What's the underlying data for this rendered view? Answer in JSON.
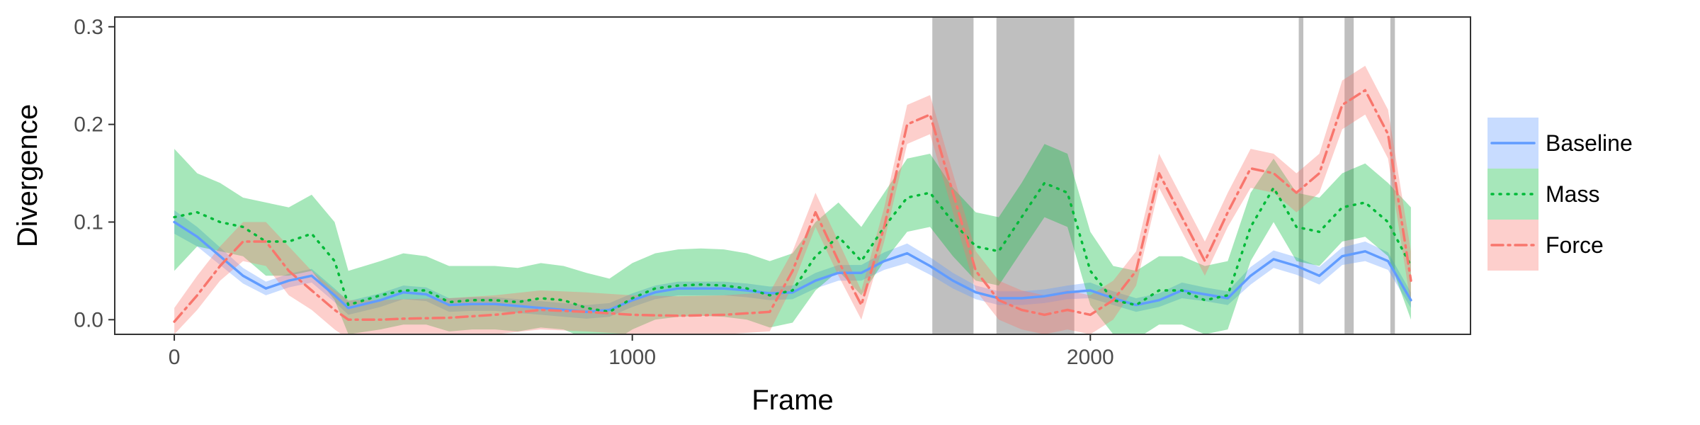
{
  "chart_data": {
    "type": "line",
    "xlabel": "Frame",
    "ylabel": "Divergence",
    "xlim": [
      -130,
      2830
    ],
    "ylim": [
      -0.015,
      0.31
    ],
    "x_ticks": [
      0,
      1000,
      2000
    ],
    "x_tick_labels": [
      "0",
      "1000",
      "2000"
    ],
    "y_ticks": [
      0.0,
      0.1,
      0.2,
      0.3
    ],
    "y_tick_labels": [
      "0.0",
      "0.1",
      "0.2",
      "0.3"
    ],
    "grid": false,
    "legend_position": "right",
    "shaded_regions": [
      {
        "start": 1655,
        "end": 1745
      },
      {
        "start": 1795,
        "end": 1965
      },
      {
        "start": 2455,
        "end": 2465
      },
      {
        "start": 2555,
        "end": 2575
      },
      {
        "start": 2655,
        "end": 2665
      }
    ],
    "shade_color": "#bfbfbf",
    "series": [
      {
        "name": "Baseline",
        "color": "#619CFF",
        "line_style": "solid",
        "x": [
          0,
          50,
          100,
          150,
          200,
          250,
          300,
          350,
          380,
          450,
          500,
          550,
          600,
          650,
          700,
          750,
          800,
          850,
          900,
          950,
          1000,
          1050,
          1100,
          1150,
          1200,
          1250,
          1300,
          1350,
          1400,
          1450,
          1500,
          1550,
          1600,
          1650,
          1700,
          1750,
          1800,
          1850,
          1900,
          1950,
          2000,
          2050,
          2100,
          2150,
          2200,
          2250,
          2300,
          2350,
          2400,
          2450,
          2500,
          2550,
          2600,
          2650,
          2700
        ],
        "y": [
          0.1,
          0.085,
          0.065,
          0.045,
          0.032,
          0.04,
          0.045,
          0.025,
          0.012,
          0.02,
          0.028,
          0.026,
          0.015,
          0.016,
          0.016,
          0.014,
          0.012,
          0.01,
          0.008,
          0.01,
          0.02,
          0.028,
          0.032,
          0.032,
          0.032,
          0.03,
          0.027,
          0.028,
          0.04,
          0.048,
          0.048,
          0.06,
          0.068,
          0.055,
          0.04,
          0.028,
          0.022,
          0.022,
          0.024,
          0.028,
          0.03,
          0.022,
          0.015,
          0.02,
          0.03,
          0.026,
          0.022,
          0.045,
          0.062,
          0.055,
          0.045,
          0.065,
          0.07,
          0.06,
          0.02
        ],
        "lower": [
          0.088,
          0.075,
          0.056,
          0.037,
          0.025,
          0.033,
          0.038,
          0.018,
          0.005,
          0.013,
          0.021,
          0.019,
          0.008,
          0.009,
          0.009,
          0.007,
          0.005,
          0.003,
          0.001,
          0.003,
          0.013,
          0.021,
          0.025,
          0.025,
          0.025,
          0.023,
          0.02,
          0.021,
          0.032,
          0.04,
          0.04,
          0.051,
          0.058,
          0.046,
          0.032,
          0.021,
          0.015,
          0.015,
          0.017,
          0.021,
          0.022,
          0.015,
          0.008,
          0.013,
          0.022,
          0.019,
          0.015,
          0.036,
          0.053,
          0.046,
          0.036,
          0.056,
          0.06,
          0.051,
          0.012
        ],
        "upper": [
          0.112,
          0.095,
          0.074,
          0.053,
          0.039,
          0.047,
          0.052,
          0.032,
          0.019,
          0.027,
          0.035,
          0.033,
          0.022,
          0.023,
          0.023,
          0.021,
          0.019,
          0.017,
          0.015,
          0.017,
          0.027,
          0.035,
          0.039,
          0.039,
          0.039,
          0.037,
          0.034,
          0.035,
          0.048,
          0.056,
          0.056,
          0.069,
          0.078,
          0.064,
          0.048,
          0.035,
          0.029,
          0.029,
          0.031,
          0.035,
          0.038,
          0.029,
          0.022,
          0.027,
          0.038,
          0.033,
          0.029,
          0.054,
          0.071,
          0.064,
          0.054,
          0.074,
          0.08,
          0.069,
          0.028
        ]
      },
      {
        "name": "Mass",
        "color": "#00BA38",
        "line_style": "dotted",
        "x": [
          0,
          50,
          100,
          150,
          200,
          250,
          300,
          350,
          380,
          450,
          500,
          550,
          600,
          650,
          700,
          750,
          800,
          850,
          900,
          950,
          1000,
          1050,
          1100,
          1150,
          1200,
          1250,
          1300,
          1350,
          1400,
          1450,
          1500,
          1550,
          1600,
          1650,
          1700,
          1750,
          1800,
          1850,
          1900,
          1950,
          2000,
          2050,
          2100,
          2150,
          2200,
          2250,
          2300,
          2350,
          2400,
          2450,
          2500,
          2550,
          2600,
          2650,
          2700
        ],
        "y": [
          0.105,
          0.11,
          0.1,
          0.095,
          0.08,
          0.08,
          0.088,
          0.06,
          0.015,
          0.025,
          0.03,
          0.03,
          0.018,
          0.02,
          0.02,
          0.018,
          0.022,
          0.02,
          0.012,
          0.008,
          0.022,
          0.032,
          0.035,
          0.036,
          0.035,
          0.032,
          0.025,
          0.03,
          0.065,
          0.085,
          0.06,
          0.095,
          0.125,
          0.13,
          0.1,
          0.075,
          0.07,
          0.105,
          0.14,
          0.13,
          0.05,
          0.02,
          0.015,
          0.03,
          0.03,
          0.02,
          0.025,
          0.095,
          0.135,
          0.095,
          0.09,
          0.115,
          0.12,
          0.1,
          0.055
        ],
        "lower": [
          0.05,
          0.075,
          0.07,
          0.065,
          0.045,
          0.045,
          0.05,
          0.02,
          -0.015,
          -0.01,
          -0.005,
          -0.005,
          -0.012,
          -0.01,
          -0.01,
          -0.012,
          -0.008,
          -0.01,
          -0.02,
          -0.025,
          -0.01,
          0.0,
          0.003,
          0.004,
          0.003,
          0.0,
          -0.008,
          -0.003,
          0.03,
          0.05,
          0.025,
          0.06,
          0.09,
          0.095,
          0.065,
          0.04,
          0.035,
          0.07,
          0.105,
          0.095,
          0.015,
          -0.015,
          -0.02,
          -0.005,
          -0.005,
          -0.015,
          -0.01,
          0.06,
          0.1,
          0.06,
          0.055,
          0.08,
          0.085,
          0.065,
          0.0
        ],
        "upper": [
          0.175,
          0.15,
          0.14,
          0.125,
          0.12,
          0.115,
          0.128,
          0.1,
          0.05,
          0.06,
          0.068,
          0.065,
          0.055,
          0.055,
          0.055,
          0.053,
          0.058,
          0.055,
          0.048,
          0.042,
          0.058,
          0.068,
          0.072,
          0.073,
          0.072,
          0.068,
          0.06,
          0.068,
          0.1,
          0.12,
          0.095,
          0.13,
          0.165,
          0.17,
          0.135,
          0.11,
          0.105,
          0.14,
          0.18,
          0.17,
          0.09,
          0.055,
          0.05,
          0.065,
          0.065,
          0.055,
          0.06,
          0.13,
          0.165,
          0.13,
          0.125,
          0.15,
          0.16,
          0.14,
          0.115
        ]
      },
      {
        "name": "Force",
        "color": "#F8766D",
        "line_style": "dashdot",
        "x": [
          0,
          50,
          100,
          150,
          200,
          250,
          300,
          350,
          380,
          450,
          500,
          600,
          700,
          800,
          900,
          1000,
          1100,
          1200,
          1300,
          1350,
          1400,
          1450,
          1500,
          1550,
          1600,
          1650,
          1700,
          1750,
          1800,
          1850,
          1900,
          1950,
          2000,
          2050,
          2100,
          2150,
          2200,
          2250,
          2300,
          2350,
          2400,
          2450,
          2500,
          2550,
          2600,
          2650,
          2700
        ],
        "y": [
          -0.002,
          0.025,
          0.055,
          0.08,
          0.08,
          0.05,
          0.03,
          0.01,
          0.0,
          0.0,
          0.001,
          0.002,
          0.005,
          0.01,
          0.008,
          0.005,
          0.004,
          0.005,
          0.008,
          0.05,
          0.11,
          0.06,
          0.015,
          0.095,
          0.2,
          0.21,
          0.13,
          0.05,
          0.02,
          0.01,
          0.005,
          0.01,
          0.005,
          0.02,
          0.05,
          0.15,
          0.105,
          0.06,
          0.11,
          0.155,
          0.15,
          0.13,
          0.15,
          0.22,
          0.235,
          0.19,
          0.04
        ],
        "lower": [
          -0.015,
          0.01,
          0.04,
          0.06,
          0.055,
          0.025,
          0.01,
          -0.01,
          -0.02,
          -0.02,
          -0.019,
          -0.018,
          -0.015,
          -0.01,
          -0.012,
          -0.015,
          -0.016,
          -0.015,
          -0.012,
          0.035,
          0.095,
          0.045,
          0.0,
          0.08,
          0.18,
          0.19,
          0.11,
          0.03,
          0.0,
          -0.01,
          -0.015,
          -0.01,
          -0.015,
          0.0,
          0.035,
          0.135,
          0.09,
          0.045,
          0.095,
          0.135,
          0.13,
          0.11,
          0.13,
          0.195,
          0.21,
          0.165,
          0.015
        ],
        "upper": [
          0.012,
          0.045,
          0.075,
          0.1,
          0.1,
          0.075,
          0.05,
          0.03,
          0.02,
          0.02,
          0.021,
          0.022,
          0.025,
          0.03,
          0.028,
          0.025,
          0.024,
          0.025,
          0.028,
          0.07,
          0.13,
          0.08,
          0.03,
          0.115,
          0.22,
          0.23,
          0.15,
          0.07,
          0.04,
          0.03,
          0.025,
          0.03,
          0.025,
          0.04,
          0.07,
          0.17,
          0.125,
          0.08,
          0.13,
          0.175,
          0.17,
          0.15,
          0.17,
          0.245,
          0.26,
          0.215,
          0.07
        ]
      }
    ]
  }
}
